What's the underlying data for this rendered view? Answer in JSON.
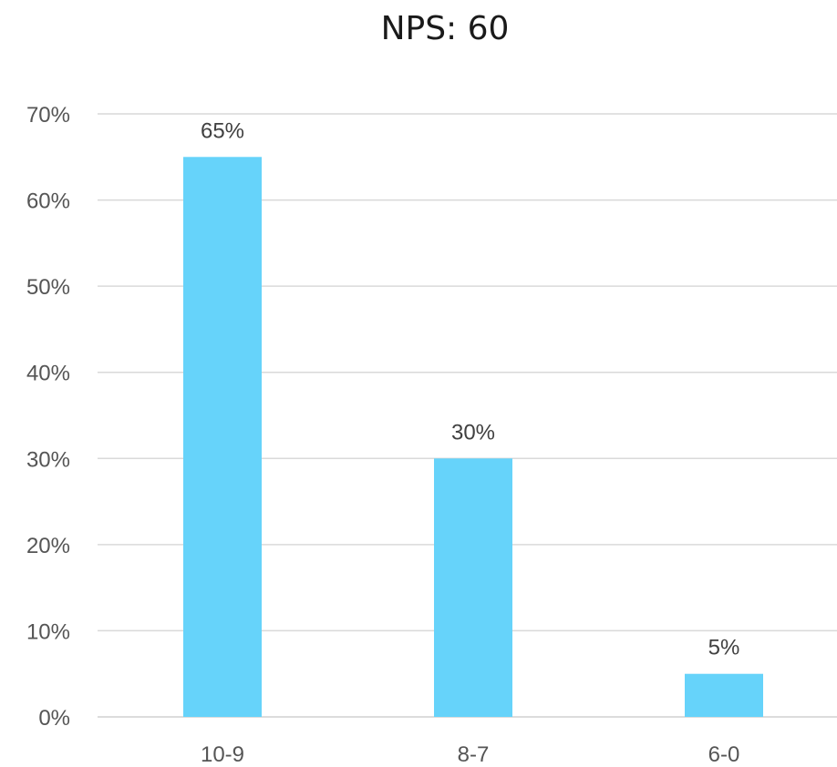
{
  "chart_data": {
    "type": "bar",
    "title": "NPS: 60",
    "xlabel": "",
    "ylabel": "",
    "categories": [
      "10-9",
      "8-7",
      "6-0"
    ],
    "values": [
      65,
      30,
      5
    ],
    "data_labels": [
      "65%",
      "30%",
      "5%"
    ],
    "ylim": [
      0,
      70
    ],
    "y_ticks": [
      0,
      10,
      20,
      30,
      40,
      50,
      60,
      70
    ],
    "y_tick_labels": [
      "0%",
      "10%",
      "20%",
      "30%",
      "40%",
      "50%",
      "60%",
      "70%"
    ],
    "grid": true,
    "legend": "none",
    "bar_color": "#66d3fa"
  }
}
